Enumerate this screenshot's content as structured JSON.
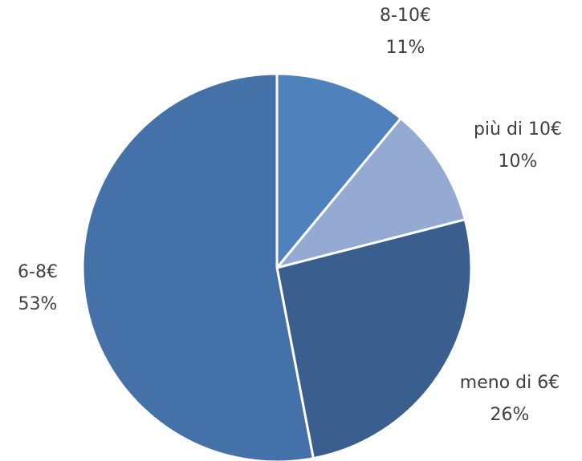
{
  "chart_data": {
    "type": "pie",
    "categories": [
      "8-10€",
      "più di 10€",
      "meno di 6€",
      "6-8€"
    ],
    "values": [
      11,
      10,
      26,
      53
    ],
    "value_labels": [
      "11%",
      "10%",
      "26%",
      "53%"
    ],
    "colors": [
      "#4f81bd",
      "#95aad3",
      "#3a5f8f",
      "#4472a8"
    ]
  }
}
